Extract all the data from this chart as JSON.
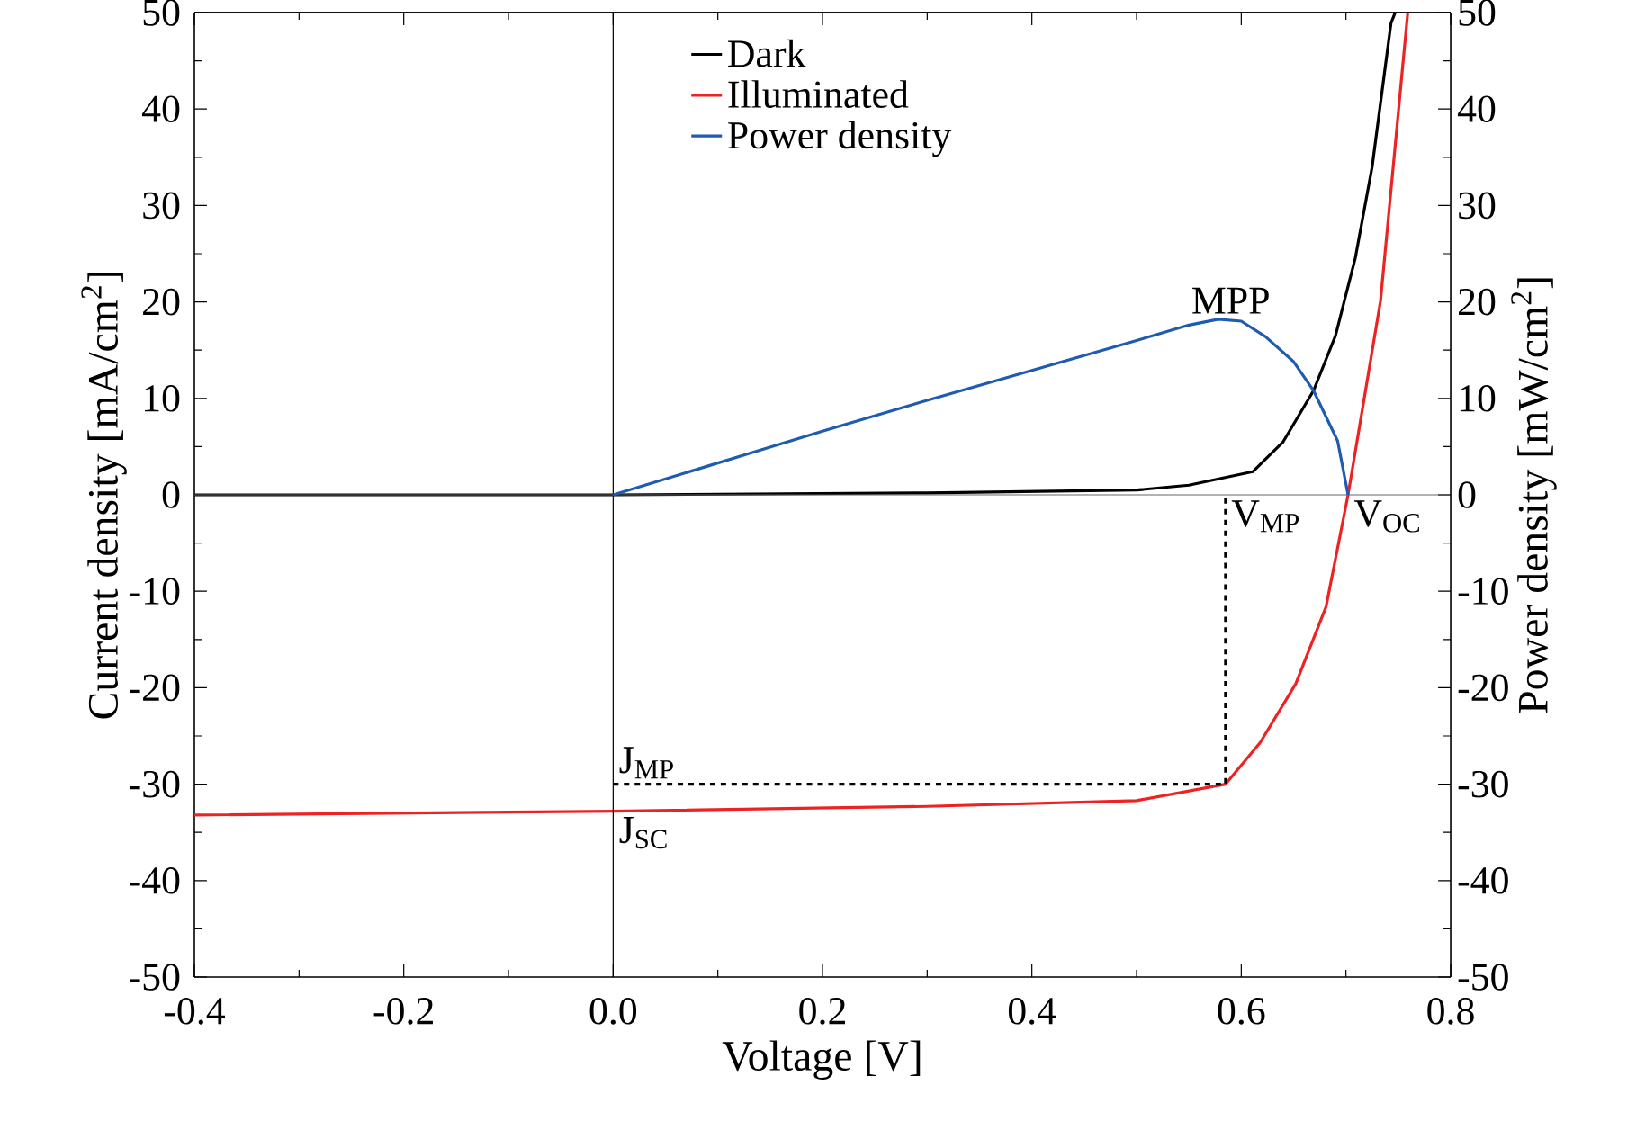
{
  "chart_data": {
    "type": "line",
    "xlabel": "Voltage [V]",
    "ylabel": "Current density [mA/cm$^{2}$]",
    "y2label": "Power density [mW/cm$^{2}$]",
    "xlim": [
      -0.4,
      0.8
    ],
    "xticks": [
      -0.4,
      -0.2,
      {
        "value": 0,
        "label": "0.0"
      },
      0.2,
      0.4,
      0.6,
      0.8
    ],
    "ylim": [
      -50,
      50
    ],
    "yticks": [
      -50,
      -40,
      -30,
      -20,
      -10,
      0,
      10,
      20,
      30,
      40,
      50
    ],
    "y2lim": [
      -50,
      50
    ],
    "y2ticks": [
      -50,
      -40,
      -30,
      -20,
      -10,
      0,
      10,
      20,
      30,
      40,
      50
    ],
    "legend": "top",
    "grid": false,
    "marker": "none",
    "line_style": "solid",
    "series": [
      {
        "name": "Dark",
        "color": "#000000",
        "x": [
          -0.4,
          0.0,
          0.3,
          0.5,
          0.55,
          0.611,
          0.64,
          0.669,
          0.69,
          0.709,
          0.725,
          0.743,
          0.747
        ],
        "values": [
          0,
          0,
          0.2,
          0.5,
          1.0,
          2.4,
          5.5,
          10.8,
          16.5,
          24.6,
          34,
          48.9,
          50
        ]
      },
      {
        "name": "Illuminated",
        "color": "#ee2222",
        "x": [
          -0.4,
          0.0,
          0.3,
          0.5,
          0.585,
          0.618,
          0.652,
          0.681,
          0.702,
          0.733,
          0.759
        ],
        "values": [
          -33.2,
          -32.8,
          -32.3,
          -31.7,
          -30.0,
          -25.7,
          -19.6,
          -11.6,
          0,
          20.1,
          50
        ]
      },
      {
        "name": "Power density",
        "color": "#1f5bb0",
        "axis": "y2",
        "x": [
          0.0,
          0.1,
          0.2,
          0.3,
          0.4,
          0.5,
          0.55,
          0.578,
          0.6,
          0.623,
          0.65,
          0.669,
          0.692,
          0.702
        ],
        "values": [
          0,
          3.3,
          6.6,
          9.8,
          12.9,
          16.0,
          17.6,
          18.2,
          18.0,
          16.4,
          13.8,
          10.8,
          5.6,
          0
        ]
      },
      {
        "type": "line",
        "color": "#000000",
        "line_style": "dashed",
        "x": [
          0.0,
          0.585,
          0.585
        ],
        "values": [
          -30.0,
          -30.0,
          0
        ]
      }
    ],
    "ref_lines": [
      {
        "axis": "x",
        "value": 0,
        "color": "#000000"
      },
      {
        "axis": "y",
        "value": 0,
        "color": "#666666"
      }
    ],
    "annotations": [
      {
        "text": "MPP",
        "x": 0.59,
        "y": 18.2
      },
      {
        "text": "V$_{MP}$",
        "x": 0.585,
        "y": 0
      },
      {
        "text": "V$_{OC}$",
        "x": 0.702,
        "y": 0
      },
      {
        "text": "J$_{MP}$",
        "x": 0.0,
        "y": -30.0
      },
      {
        "text": "J$_{SC}$",
        "x": 0.0,
        "y": -32.8
      }
    ]
  }
}
